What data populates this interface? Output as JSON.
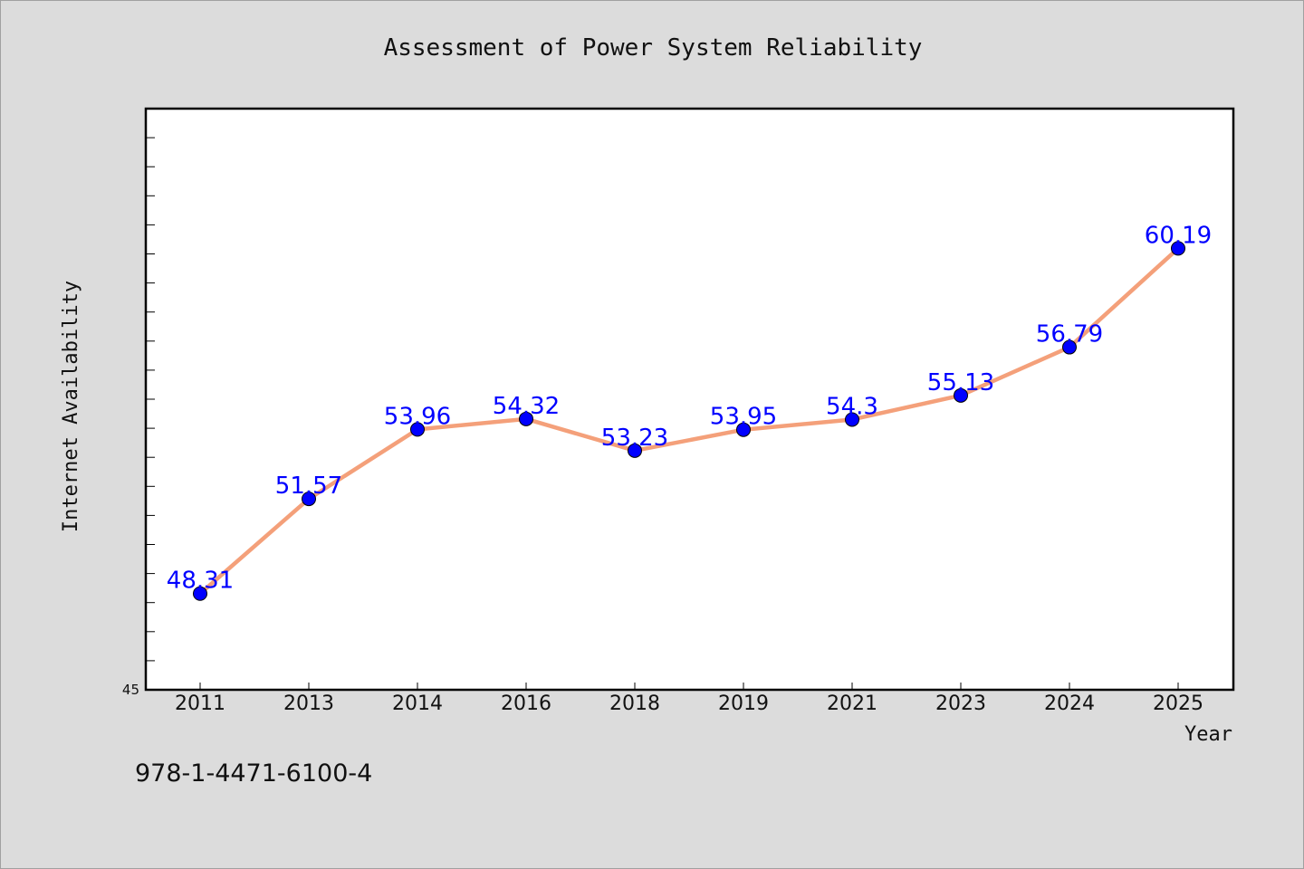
{
  "chart_data": {
    "type": "line",
    "title": "Assessment of Power System Reliability",
    "xlabel": "Year",
    "ylabel": "Internet Availability",
    "categories": [
      "2011",
      "2013",
      "2014",
      "2016",
      "2018",
      "2019",
      "2021",
      "2023",
      "2024",
      "2025"
    ],
    "series": [
      {
        "values": [
          48.31,
          51.57,
          53.96,
          54.32,
          53.23,
          53.95,
          54.3,
          55.13,
          56.79,
          60.19
        ],
        "data_labels": [
          "48.31",
          "51.57",
          "53.96",
          "54.32",
          "53.23",
          "53.95",
          "54.3",
          "55.13",
          "56.79",
          "60.19"
        ],
        "line_color": "#f4a07a",
        "marker_color": "#0000ff"
      }
    ],
    "ylim": [
      45,
      65
    ],
    "y_tick_labels": [
      "45"
    ],
    "grid": false,
    "legend": "none"
  },
  "footer": {
    "isbn": "978-1-4471-6100-4"
  }
}
